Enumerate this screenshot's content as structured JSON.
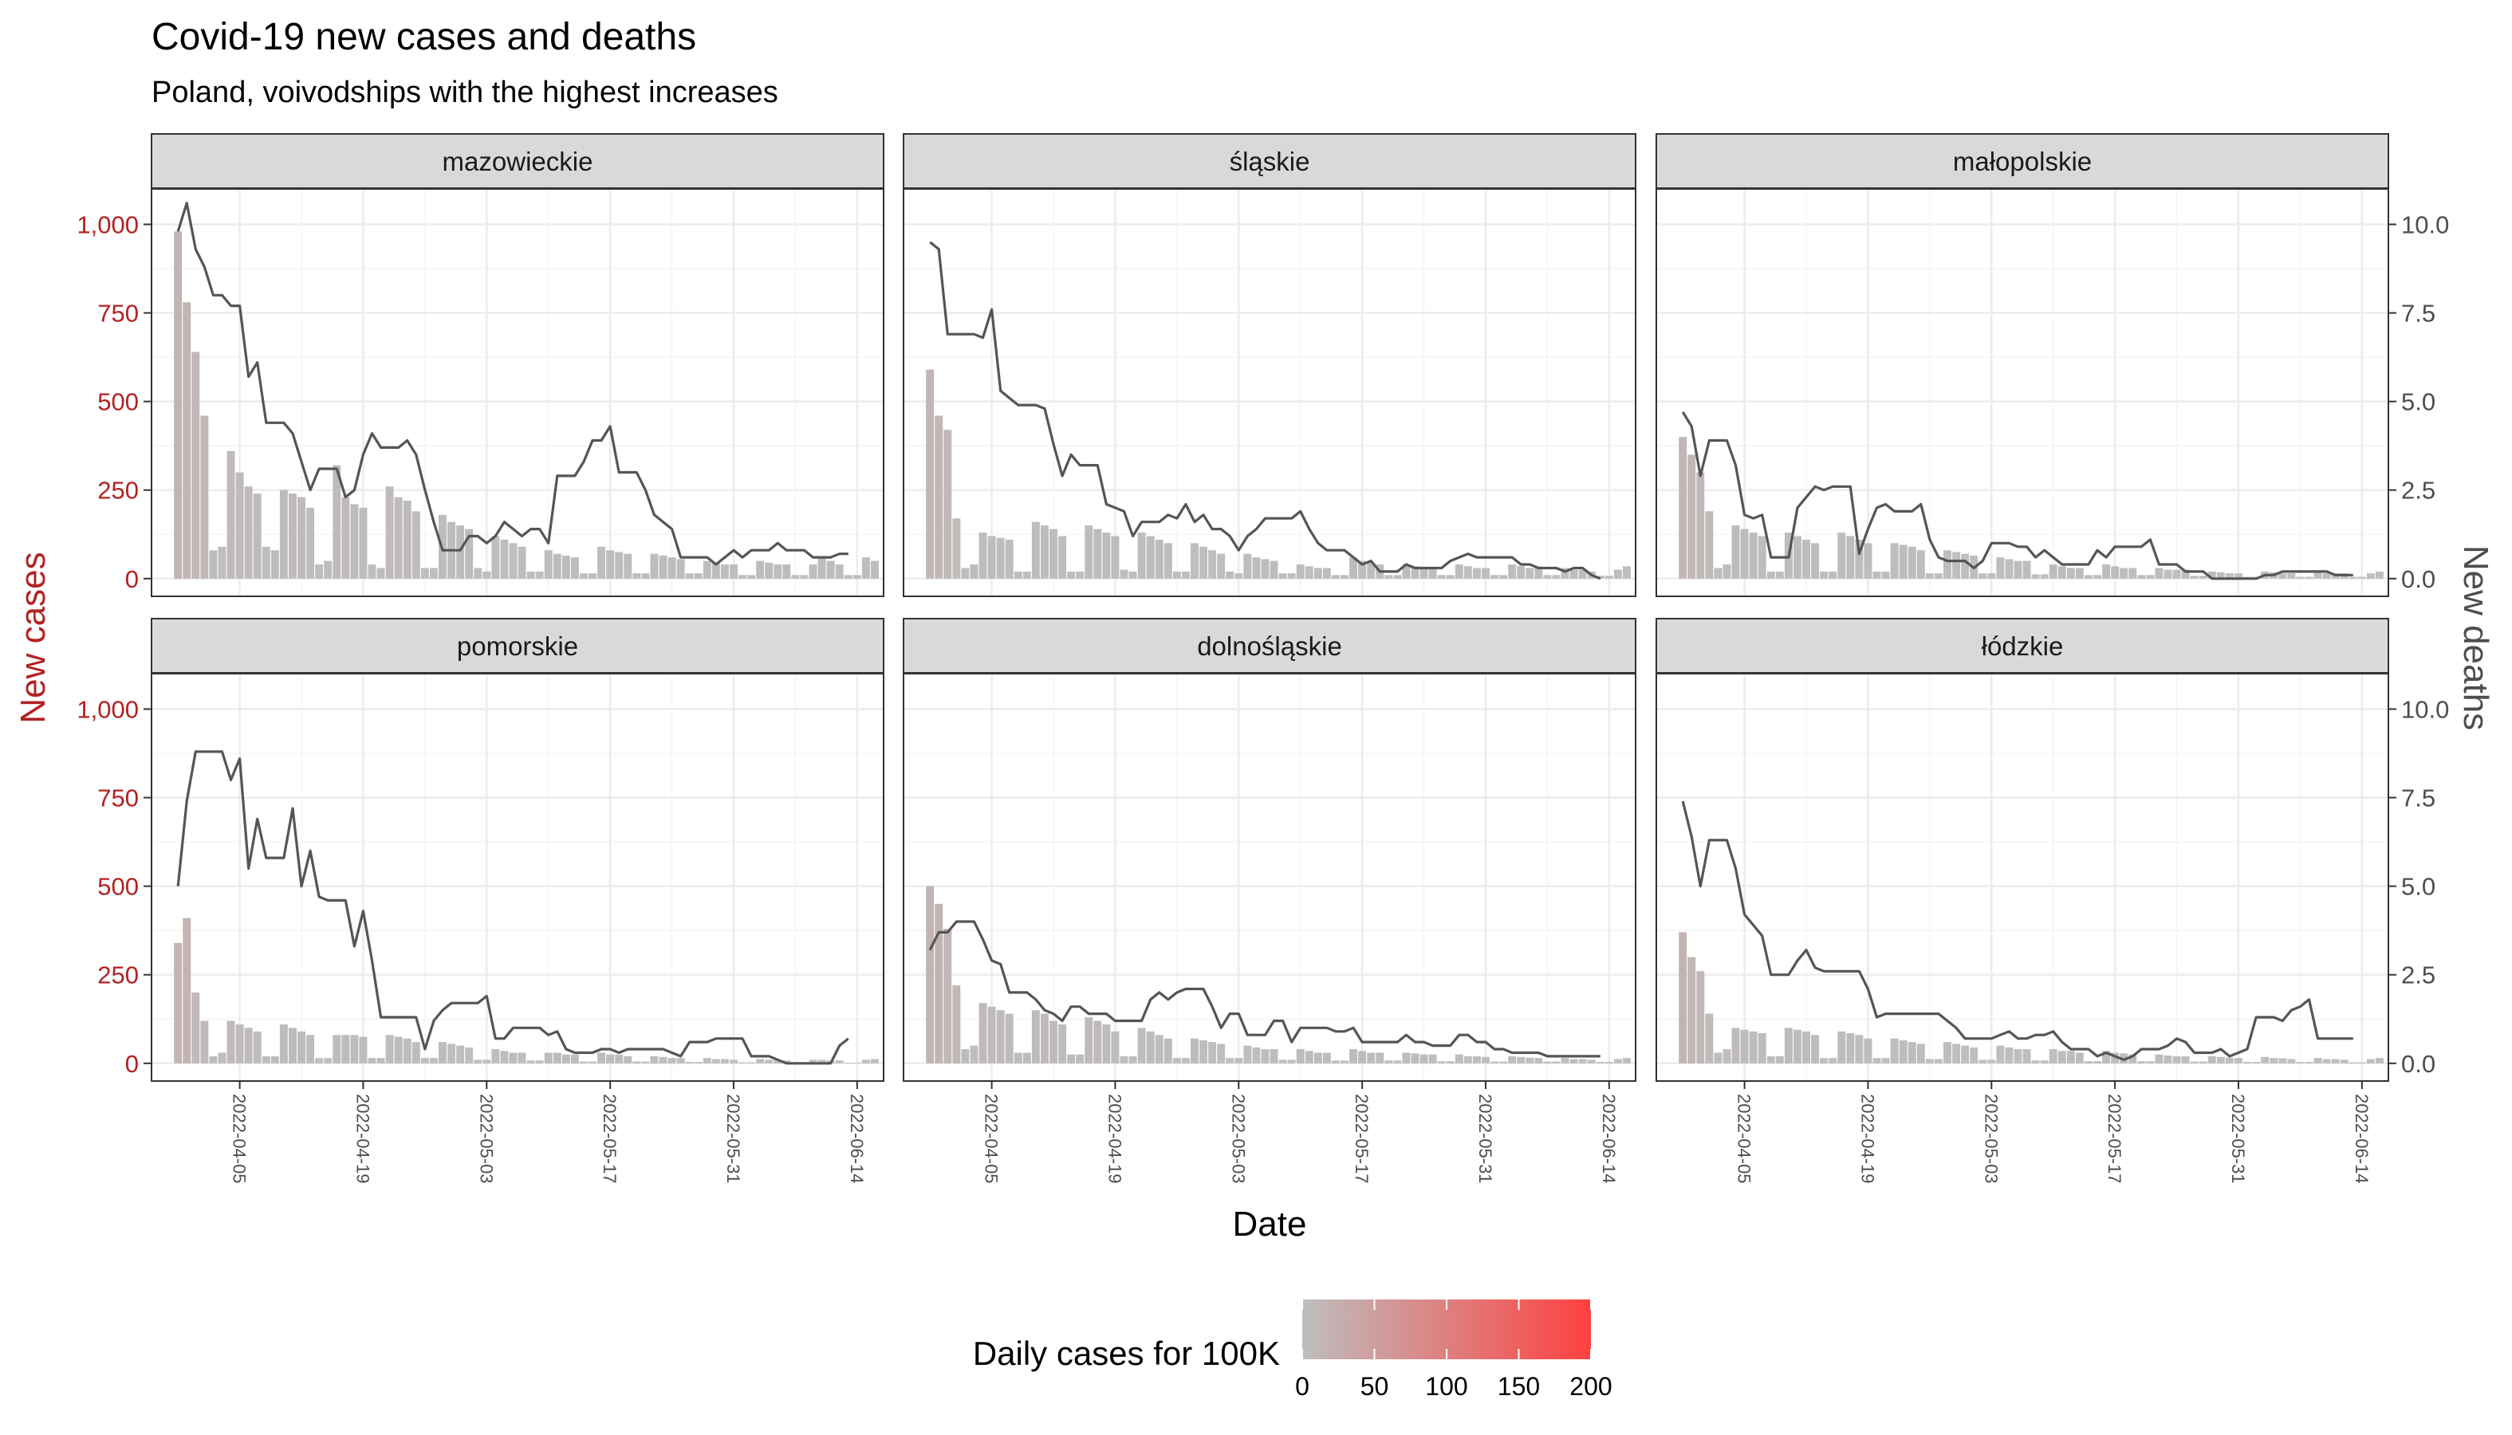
{
  "chart_data": {
    "type": "bar+line faceted",
    "title": "Covid-19 new cases and deaths",
    "subtitle": "Poland, voivodships with the highest increases",
    "xlabel": "Date",
    "ylabel_left": "New cases",
    "ylabel_right": "New deaths",
    "ylim_left": [
      -50,
      1100
    ],
    "ylim_right": [
      -0.5,
      11
    ],
    "yticks_left": [
      0,
      250,
      500,
      750,
      1000
    ],
    "yticks_left_labels": [
      "0",
      "250",
      "500",
      "750",
      "1,000"
    ],
    "yticks_right": [
      0,
      2.5,
      5,
      7.5,
      10
    ],
    "yticks_right_labels": [
      "0.0",
      "2.5",
      "5.0",
      "7.5",
      "10.0"
    ],
    "date_start": "2022-03-29",
    "xticks": [
      "2022-04-05",
      "2022-04-19",
      "2022-05-03",
      "2022-05-17",
      "2022-05-31",
      "2022-06-14"
    ],
    "xlim": [
      "2022-03-26",
      "2022-06-17"
    ],
    "grid": true,
    "colors": {
      "bar_low": "#bebebe",
      "bar_high": "#ff4040",
      "line": "#555555",
      "left_axis": "#b22222",
      "right_axis": "#4d4d4d"
    },
    "legend": {
      "title": "Daily cases for 100K",
      "placement": "bottom",
      "range": [
        0,
        200
      ],
      "ticks": [
        "0",
        "50",
        "100",
        "150",
        "200"
      ]
    },
    "panels": [
      {
        "name": "mazowieckie",
        "population_100k": 54.2,
        "cases": [
          980,
          780,
          640,
          460,
          80,
          90,
          360,
          300,
          260,
          240,
          90,
          80,
          250,
          240,
          230,
          200,
          40,
          50,
          320,
          230,
          210,
          200,
          40,
          30,
          260,
          230,
          220,
          190,
          30,
          30,
          180,
          160,
          150,
          140,
          30,
          20,
          120,
          110,
          100,
          90,
          20,
          20,
          80,
          70,
          65,
          60,
          15,
          15,
          90,
          80,
          75,
          70,
          15,
          15,
          70,
          65,
          60,
          55,
          15,
          15,
          50,
          45,
          40,
          40,
          10,
          10,
          50,
          45,
          40,
          40,
          10,
          10,
          40,
          60,
          50,
          40,
          10,
          10,
          60,
          50
        ],
        "deaths": [
          9.8,
          10.6,
          9.3,
          8.8,
          8.0,
          8.0,
          7.7,
          7.7,
          5.7,
          6.1,
          4.4,
          4.4,
          4.4,
          4.1,
          3.3,
          2.5,
          3.1,
          3.1,
          3.1,
          2.3,
          2.5,
          3.5,
          4.1,
          3.7,
          3.7,
          3.7,
          3.9,
          3.5,
          2.5,
          1.6,
          0.8,
          0.8,
          0.8,
          1.2,
          1.2,
          1.0,
          1.2,
          1.6,
          1.4,
          1.2,
          1.4,
          1.4,
          1.0,
          2.9,
          2.9,
          2.9,
          3.3,
          3.9,
          3.9,
          4.3,
          3.0,
          3.0,
          3.0,
          2.5,
          1.8,
          1.6,
          1.4,
          0.6,
          0.6,
          0.6,
          0.6,
          0.4,
          0.6,
          0.8,
          0.6,
          0.8,
          0.8,
          0.8,
          1.0,
          0.8,
          0.8,
          0.8,
          0.6,
          0.6,
          0.6,
          0.7,
          0.7
        ]
      },
      {
        "name": "śląskie",
        "population_100k": 45.0,
        "cases": [
          590,
          460,
          420,
          170,
          30,
          40,
          130,
          120,
          115,
          110,
          20,
          20,
          160,
          150,
          140,
          120,
          20,
          20,
          150,
          140,
          130,
          120,
          25,
          20,
          130,
          120,
          110,
          100,
          20,
          20,
          100,
          90,
          80,
          70,
          20,
          15,
          70,
          60,
          55,
          50,
          15,
          15,
          40,
          35,
          30,
          30,
          10,
          10,
          60,
          50,
          45,
          40,
          10,
          10,
          40,
          35,
          30,
          30,
          10,
          10,
          40,
          35,
          30,
          30,
          10,
          10,
          40,
          35,
          30,
          30,
          10,
          10,
          30,
          25,
          25,
          20,
          8,
          8,
          25,
          35
        ],
        "deaths": [
          9.5,
          9.3,
          6.9,
          6.9,
          6.9,
          6.9,
          6.8,
          7.6,
          5.3,
          5.1,
          4.9,
          4.9,
          4.9,
          4.8,
          3.8,
          2.9,
          3.5,
          3.2,
          3.2,
          3.2,
          2.1,
          2.0,
          1.9,
          1.2,
          1.6,
          1.6,
          1.6,
          1.8,
          1.7,
          2.1,
          1.6,
          1.8,
          1.4,
          1.4,
          1.2,
          0.8,
          1.2,
          1.4,
          1.7,
          1.7,
          1.7,
          1.7,
          1.9,
          1.4,
          1.0,
          0.8,
          0.8,
          0.8,
          0.6,
          0.4,
          0.5,
          0.2,
          0.2,
          0.2,
          0.4,
          0.3,
          0.3,
          0.3,
          0.3,
          0.5,
          0.6,
          0.7,
          0.6,
          0.6,
          0.6,
          0.6,
          0.6,
          0.4,
          0.4,
          0.3,
          0.3,
          0.3,
          0.2,
          0.3,
          0.3,
          0.1,
          0.0
        ]
      },
      {
        "name": "małopolskie",
        "population_100k": 34.1,
        "cases": [
          400,
          350,
          300,
          190,
          30,
          40,
          150,
          140,
          130,
          120,
          20,
          20,
          130,
          120,
          110,
          100,
          20,
          20,
          130,
          120,
          110,
          100,
          20,
          20,
          100,
          95,
          90,
          80,
          15,
          15,
          80,
          75,
          70,
          65,
          15,
          15,
          60,
          55,
          50,
          50,
          12,
          12,
          40,
          35,
          30,
          30,
          10,
          10,
          40,
          35,
          30,
          30,
          10,
          10,
          30,
          25,
          25,
          25,
          8,
          8,
          20,
          18,
          15,
          15,
          5,
          5,
          20,
          18,
          15,
          15,
          5,
          5,
          20,
          15,
          15,
          15,
          5,
          5,
          15,
          20
        ],
        "deaths": [
          4.7,
          4.3,
          2.9,
          3.9,
          3.9,
          3.9,
          3.2,
          1.8,
          1.7,
          1.8,
          0.6,
          0.6,
          0.6,
          2.0,
          2.3,
          2.6,
          2.5,
          2.6,
          2.6,
          2.6,
          0.7,
          1.4,
          2.0,
          2.1,
          1.9,
          1.9,
          1.9,
          2.1,
          1.1,
          0.6,
          0.5,
          0.5,
          0.5,
          0.3,
          0.5,
          1.0,
          1.0,
          1.0,
          0.9,
          0.9,
          0.6,
          0.8,
          0.6,
          0.4,
          0.4,
          0.4,
          0.4,
          0.8,
          0.6,
          0.9,
          0.9,
          0.9,
          0.9,
          1.1,
          0.4,
          0.4,
          0.4,
          0.2,
          0.2,
          0.2,
          0.0,
          0.0,
          0.0,
          0.0,
          0.0,
          0.0,
          0.1,
          0.1,
          0.2,
          0.2,
          0.2,
          0.2,
          0.2,
          0.2,
          0.1,
          0.1,
          0.1
        ]
      },
      {
        "name": "pomorskie",
        "population_100k": 23.4,
        "cases": [
          340,
          410,
          200,
          120,
          20,
          30,
          120,
          110,
          100,
          90,
          20,
          20,
          110,
          100,
          90,
          80,
          15,
          15,
          80,
          80,
          80,
          75,
          15,
          15,
          80,
          75,
          70,
          60,
          15,
          15,
          60,
          55,
          50,
          45,
          10,
          10,
          40,
          35,
          30,
          30,
          8,
          8,
          30,
          30,
          25,
          25,
          5,
          5,
          30,
          25,
          25,
          20,
          5,
          5,
          20,
          18,
          15,
          15,
          4,
          4,
          15,
          12,
          12,
          10,
          3,
          3,
          12,
          10,
          10,
          8,
          3,
          3,
          10,
          10,
          8,
          8,
          2,
          2,
          10,
          12
        ],
        "deaths": [
          5.0,
          7.4,
          8.8,
          8.8,
          8.8,
          8.8,
          8.0,
          8.6,
          5.5,
          6.9,
          5.8,
          5.8,
          5.8,
          7.2,
          5.0,
          6.0,
          4.7,
          4.6,
          4.6,
          4.6,
          3.3,
          4.3,
          2.9,
          1.3,
          1.3,
          1.3,
          1.3,
          1.3,
          0.4,
          1.2,
          1.5,
          1.7,
          1.7,
          1.7,
          1.7,
          1.9,
          0.7,
          0.7,
          1.0,
          1.0,
          1.0,
          1.0,
          0.8,
          0.9,
          0.4,
          0.3,
          0.3,
          0.3,
          0.4,
          0.4,
          0.3,
          0.4,
          0.4,
          0.4,
          0.4,
          0.4,
          0.3,
          0.2,
          0.6,
          0.6,
          0.6,
          0.7,
          0.7,
          0.7,
          0.7,
          0.2,
          0.2,
          0.2,
          0.1,
          0.0,
          0.0,
          0.0,
          0.0,
          0.0,
          0.0,
          0.5,
          0.7
        ]
      },
      {
        "name": "dolnośląskie",
        "population_100k": 29.0,
        "cases": [
          500,
          450,
          380,
          220,
          40,
          50,
          170,
          160,
          150,
          140,
          30,
          30,
          150,
          140,
          120,
          110,
          25,
          25,
          130,
          120,
          110,
          90,
          20,
          20,
          100,
          90,
          80,
          70,
          15,
          15,
          70,
          65,
          60,
          55,
          15,
          15,
          50,
          45,
          40,
          40,
          10,
          10,
          40,
          35,
          30,
          30,
          8,
          8,
          40,
          35,
          30,
          30,
          8,
          8,
          30,
          28,
          25,
          25,
          6,
          6,
          25,
          20,
          20,
          18,
          5,
          5,
          20,
          18,
          16,
          15,
          5,
          5,
          15,
          12,
          12,
          10,
          4,
          4,
          12,
          15
        ],
        "deaths": [
          3.2,
          3.7,
          3.7,
          4.0,
          4.0,
          4.0,
          3.5,
          2.9,
          2.8,
          2.0,
          2.0,
          2.0,
          1.8,
          1.5,
          1.4,
          1.2,
          1.6,
          1.6,
          1.4,
          1.4,
          1.4,
          1.2,
          1.2,
          1.2,
          1.2,
          1.8,
          2.0,
          1.8,
          2.0,
          2.1,
          2.1,
          2.1,
          1.6,
          1.0,
          1.4,
          1.4,
          0.8,
          0.8,
          0.8,
          1.2,
          1.2,
          0.6,
          1.0,
          1.0,
          1.0,
          1.0,
          0.9,
          0.9,
          1.0,
          0.6,
          0.6,
          0.6,
          0.6,
          0.6,
          0.8,
          0.6,
          0.6,
          0.5,
          0.5,
          0.5,
          0.8,
          0.8,
          0.6,
          0.6,
          0.4,
          0.4,
          0.3,
          0.3,
          0.3,
          0.3,
          0.2,
          0.2,
          0.2,
          0.2,
          0.2,
          0.2,
          0.2
        ]
      },
      {
        "name": "łódzkie",
        "population_100k": 24.1,
        "cases": [
          370,
          300,
          260,
          140,
          30,
          40,
          100,
          95,
          90,
          85,
          20,
          20,
          100,
          95,
          90,
          80,
          15,
          15,
          90,
          85,
          80,
          70,
          15,
          15,
          70,
          65,
          60,
          55,
          12,
          12,
          60,
          55,
          50,
          45,
          10,
          10,
          50,
          45,
          40,
          40,
          8,
          8,
          40,
          35,
          35,
          30,
          6,
          6,
          35,
          30,
          28,
          25,
          6,
          6,
          25,
          22,
          20,
          20,
          5,
          5,
          20,
          18,
          16,
          15,
          4,
          4,
          18,
          15,
          14,
          12,
          4,
          4,
          15,
          12,
          12,
          10,
          3,
          3,
          12,
          15
        ],
        "deaths": [
          7.4,
          6.4,
          5.0,
          6.3,
          6.3,
          6.3,
          5.5,
          4.2,
          3.9,
          3.6,
          2.5,
          2.5,
          2.5,
          2.9,
          3.2,
          2.7,
          2.6,
          2.6,
          2.6,
          2.6,
          2.6,
          2.1,
          1.3,
          1.4,
          1.4,
          1.4,
          1.4,
          1.4,
          1.4,
          1.4,
          1.2,
          1.0,
          0.7,
          0.7,
          0.7,
          0.7,
          0.8,
          0.9,
          0.7,
          0.7,
          0.8,
          0.8,
          0.9,
          0.6,
          0.4,
          0.4,
          0.4,
          0.2,
          0.3,
          0.2,
          0.1,
          0.2,
          0.4,
          0.4,
          0.4,
          0.5,
          0.7,
          0.6,
          0.3,
          0.3,
          0.3,
          0.4,
          0.2,
          0.3,
          0.4,
          1.3,
          1.3,
          1.3,
          1.2,
          1.5,
          1.6,
          1.8,
          0.7,
          0.7,
          0.7,
          0.7,
          0.7
        ]
      }
    ]
  }
}
